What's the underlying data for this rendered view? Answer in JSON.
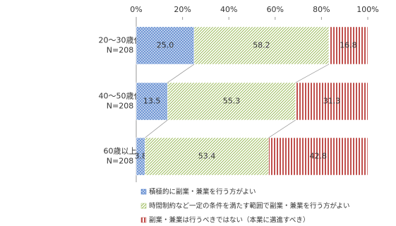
{
  "chart_data": {
    "type": "stacked_barh",
    "categories": [
      [
        "20～30歳代",
        "N=208"
      ],
      [
        "40～50歳代",
        "N=208"
      ],
      [
        "60歳以上",
        "N=208"
      ]
    ],
    "series": [
      {
        "name": "積極的に副業・兼業を行う方がよい",
        "color": "#3a6fc4",
        "values": [
          25.0,
          13.5,
          3.8
        ],
        "value_labels": [
          "25.0",
          "13.5",
          "3.8"
        ]
      },
      {
        "name": "時間制約など一定の条件を満たす範囲で副業・兼業を行う方がよい",
        "color": "#9bbb59",
        "values": [
          58.2,
          55.3,
          53.4
        ],
        "value_labels": [
          "58.2",
          "55.3",
          "53.4"
        ]
      },
      {
        "name": "副業・兼業は行うべきではない（本業に邁進すべき）",
        "color": "#c0504d",
        "values": [
          16.8,
          31.3,
          42.8
        ],
        "value_labels": [
          "16.8",
          "31.3",
          "42.8"
        ]
      }
    ],
    "xlim": [
      0,
      100
    ],
    "xticks": [
      {
        "value": 0,
        "label": "0%"
      },
      {
        "value": 20,
        "label": "20%"
      },
      {
        "value": 40,
        "label": "40%"
      },
      {
        "value": 60,
        "label": "60%"
      },
      {
        "value": 80,
        "label": "80%"
      },
      {
        "value": 100,
        "label": "100%"
      }
    ]
  }
}
